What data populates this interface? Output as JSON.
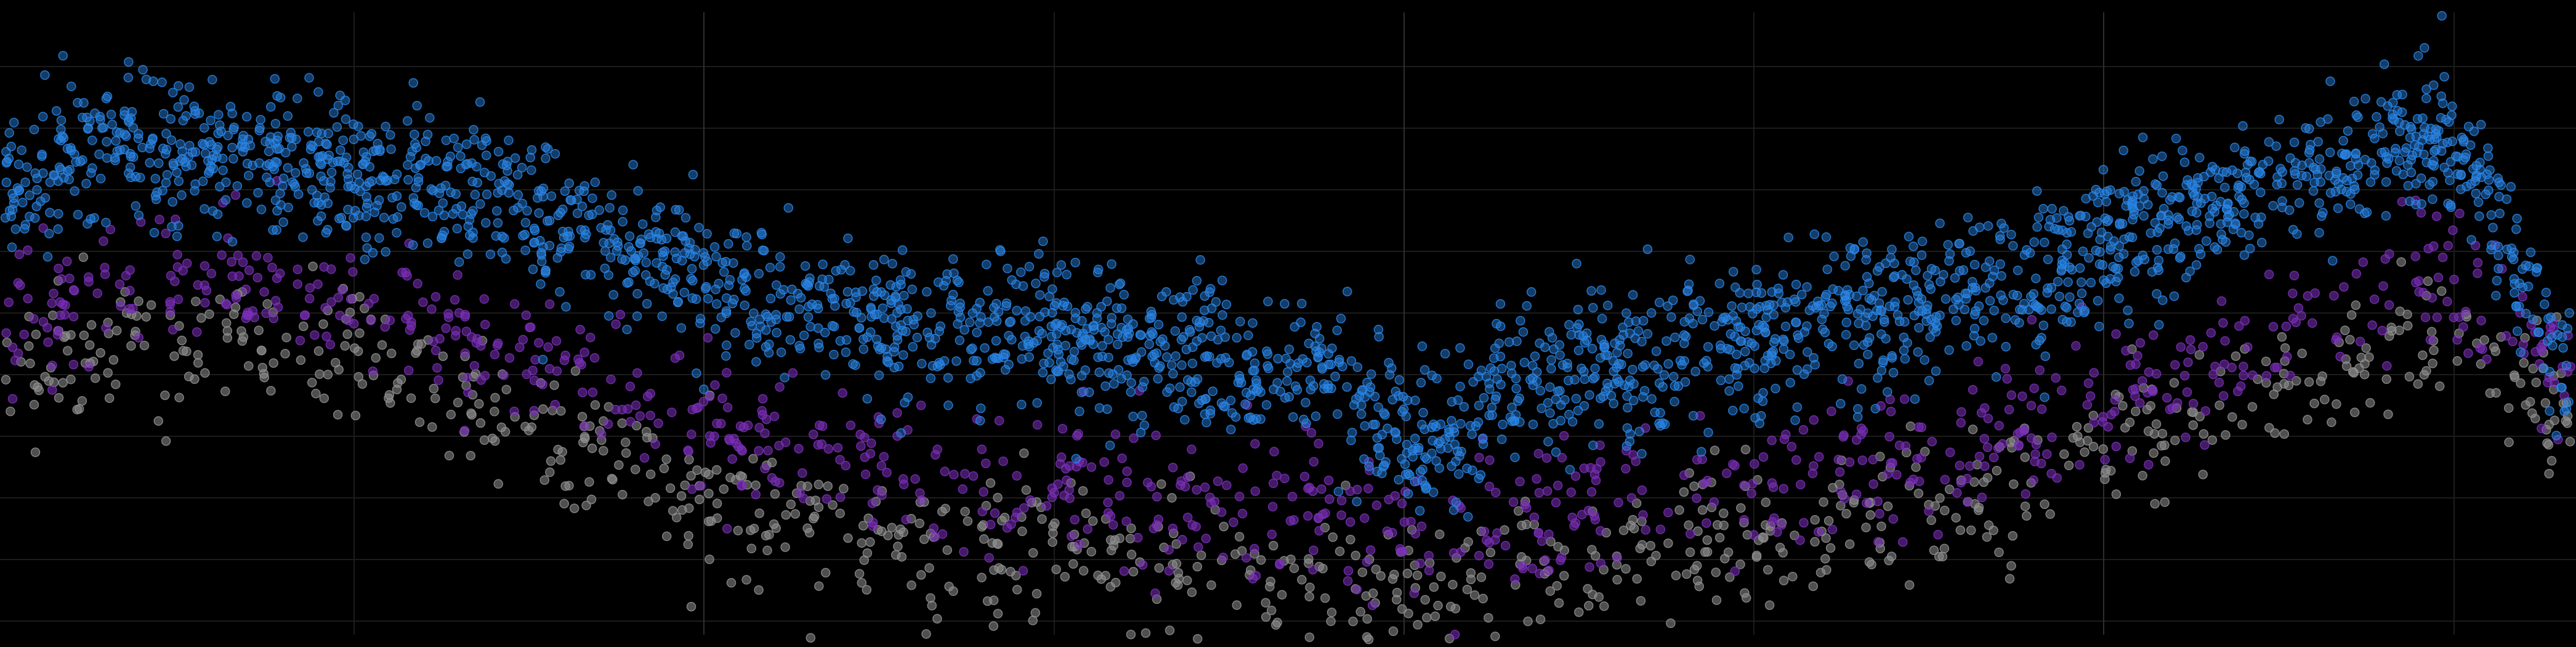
{
  "chart_data": {
    "type": "scatter",
    "title": "",
    "xlabel": "",
    "ylabel": "",
    "xlim": [
      0,
      100
    ],
    "ylim": [
      0,
      100
    ],
    "grid": true,
    "legend": "none",
    "colors": {
      "background": "#000000",
      "grid_minor": "#1c1c1c",
      "grid_major": "#2e2e2e"
    },
    "series": [
      {
        "color": "#2a86e6",
        "density": "high",
        "trend_x": [
          0,
          4,
          10,
          16,
          22,
          28,
          34,
          40,
          46,
          52,
          55,
          58,
          64,
          70,
          76,
          82,
          88,
          94,
          96,
          100
        ],
        "trend_y": [
          70,
          78,
          76,
          72,
          65,
          56,
          50,
          47,
          44,
          40,
          28,
          38,
          44,
          48,
          53,
          62,
          72,
          78,
          76,
          40
        ],
        "spread": 6
      },
      {
        "color": "#7a2fb8",
        "density": "medium",
        "trend_x": [
          0,
          4,
          10,
          16,
          22,
          28,
          34,
          40,
          46,
          52,
          55,
          58,
          64,
          70,
          76,
          82,
          88,
          94,
          96,
          100
        ],
        "trend_y": [
          48,
          56,
          56,
          50,
          42,
          32,
          25,
          23,
          21,
          18,
          14,
          17,
          20,
          24,
          28,
          36,
          46,
          56,
          54,
          42
        ],
        "spread": 6
      },
      {
        "color": "#8f8f8f",
        "density": "medium",
        "trend_x": [
          0,
          4,
          10,
          16,
          22,
          28,
          34,
          40,
          46,
          52,
          55,
          58,
          64,
          70,
          76,
          82,
          88,
          94,
          96,
          100
        ],
        "trend_y": [
          40,
          46,
          45,
          39,
          30,
          20,
          14,
          12,
          10,
          6,
          4,
          8,
          11,
          14,
          18,
          28,
          38,
          48,
          47,
          35
        ],
        "spread": 6
      }
    ]
  }
}
